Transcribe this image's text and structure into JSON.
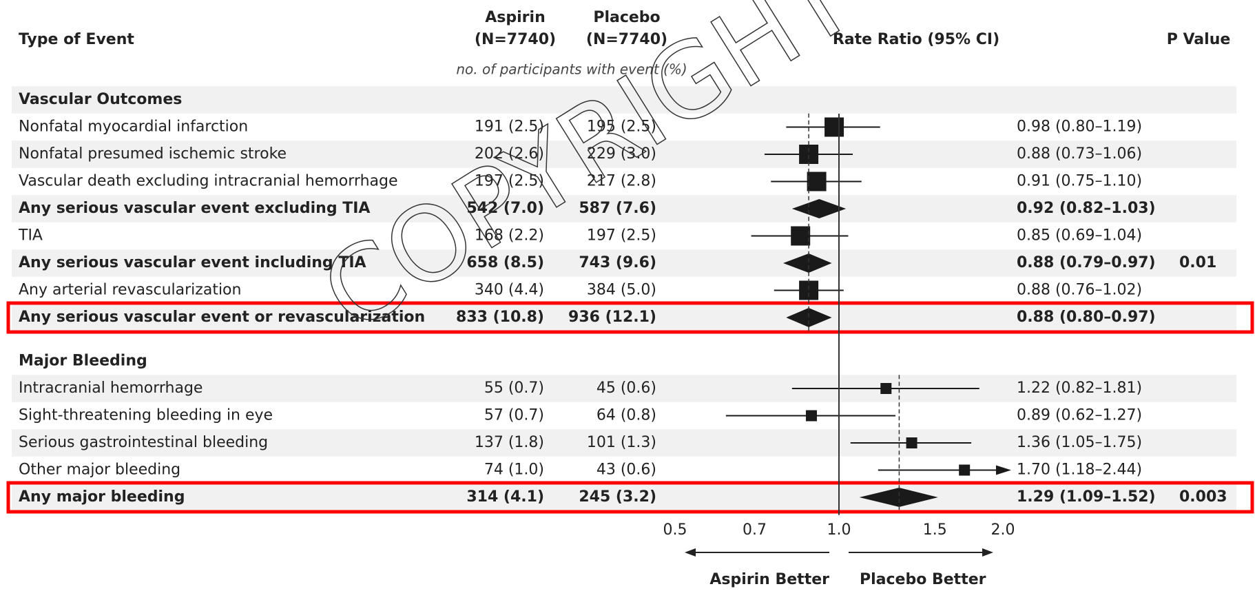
{
  "chart_data": {
    "type": "forest",
    "watermark": "COPYRIGHT",
    "event_header": "Type of Event",
    "aspirin_header": [
      "Aspirin",
      "(N=7740)"
    ],
    "placebo_header": [
      "Placebo",
      "(N=7740)"
    ],
    "count_subheader": "no. of participants with event (%)",
    "ratio_header": "Rate Ratio (95% CI)",
    "p_header": "P Value",
    "x_scale": "log",
    "xlim": [
      0.5,
      2.0
    ],
    "xticks": [
      0.5,
      0.7,
      {
        "value": 1.0,
        "label": "1.0"
      },
      1.5,
      {
        "value": 2.0,
        "label": "2.0"
      }
    ],
    "direction_labels": [
      "Aspirin Better",
      "Placebo Better"
    ],
    "marker_color": "#1a1a1a",
    "highlight_color": "#ff0000",
    "sections": [
      {
        "title": "Vascular Outcomes",
        "rows": [
          {
            "label": "Nonfatal myocardial infarction",
            "aspirin": "191 (2.5)",
            "placebo": "195 (2.5)",
            "ratio": 0.98,
            "lower": 0.8,
            "upper": 1.19,
            "ratio_label": "0.98 (0.80–1.19)"
          },
          {
            "label": "Nonfatal presumed ischemic stroke",
            "aspirin": "202 (2.6)",
            "placebo": "229 (3.0)",
            "ratio": 0.88,
            "lower": 0.73,
            "upper": 1.06,
            "ratio_label": "0.88 (0.73–1.06)"
          },
          {
            "label": "Vascular death excluding intracranial hemorrhage",
            "aspirin": "197 (2.5)",
            "placebo": "217 (2.8)",
            "ratio": 0.91,
            "lower": 0.75,
            "upper": 1.1,
            "ratio_label": "0.91 (0.75–1.10)"
          },
          {
            "label": "Any serious vascular event excluding TIA",
            "aspirin": "542 (7.0)",
            "placebo": "587 (7.6)",
            "ratio": 0.92,
            "lower": 0.82,
            "upper": 1.03,
            "ratio_label": "0.92 (0.82–1.03)",
            "bold": true
          },
          {
            "label": "TIA",
            "aspirin": "168 (2.2)",
            "placebo": "197 (2.5)",
            "ratio": 0.85,
            "lower": 0.69,
            "upper": 1.04,
            "ratio_label": "0.85 (0.69–1.04)"
          },
          {
            "label": "Any serious vascular event including TIA",
            "aspirin": "658 (8.5)",
            "placebo": "743 (9.6)",
            "ratio": 0.88,
            "lower": 0.79,
            "upper": 0.97,
            "ratio_label": "0.88 (0.79–0.97)",
            "p": "0.01",
            "bold": true
          },
          {
            "label": "Any arterial revascularization",
            "aspirin": "340 (4.4)",
            "placebo": "384 (5.0)",
            "ratio": 0.88,
            "lower": 0.76,
            "upper": 1.02,
            "ratio_label": "0.88 (0.76–1.02)"
          },
          {
            "label": "Any serious vascular event or revascularization",
            "aspirin": "833 (10.8)",
            "placebo": "936 (12.1)",
            "ratio": 0.88,
            "lower": 0.8,
            "upper": 0.97,
            "ratio_label": "0.88 (0.80–0.97)",
            "bold": true,
            "highlight": true
          }
        ]
      },
      {
        "title": "Major Bleeding",
        "rows": [
          {
            "label": "Intracranial hemorrhage",
            "aspirin": "55 (0.7)",
            "placebo": "45 (0.6)",
            "ratio": 1.22,
            "lower": 0.82,
            "upper": 1.81,
            "ratio_label": "1.22 (0.82–1.81)"
          },
          {
            "label": "Sight-threatening bleeding in eye",
            "aspirin": "57 (0.7)",
            "placebo": "64 (0.8)",
            "ratio": 0.89,
            "lower": 0.62,
            "upper": 1.27,
            "ratio_label": "0.89 (0.62–1.27)"
          },
          {
            "label": "Serious gastrointestinal bleeding",
            "aspirin": "137 (1.8)",
            "placebo": "101 (1.3)",
            "ratio": 1.36,
            "lower": 1.05,
            "upper": 1.75,
            "ratio_label": "1.36 (1.05–1.75)"
          },
          {
            "label": "Other major bleeding",
            "aspirin": "74 (1.0)",
            "placebo": "43 (0.6)",
            "ratio": 1.7,
            "lower": 1.18,
            "upper": 2.44,
            "ratio_label": "1.70 (1.18–2.44)"
          },
          {
            "label": "Any major bleeding",
            "aspirin": "314 (4.1)",
            "placebo": "245 (3.2)",
            "ratio": 1.29,
            "lower": 1.09,
            "upper": 1.52,
            "ratio_label": "1.29 (1.09–1.52)",
            "p": "0.003",
            "bold": true,
            "highlight": true
          }
        ]
      }
    ]
  }
}
